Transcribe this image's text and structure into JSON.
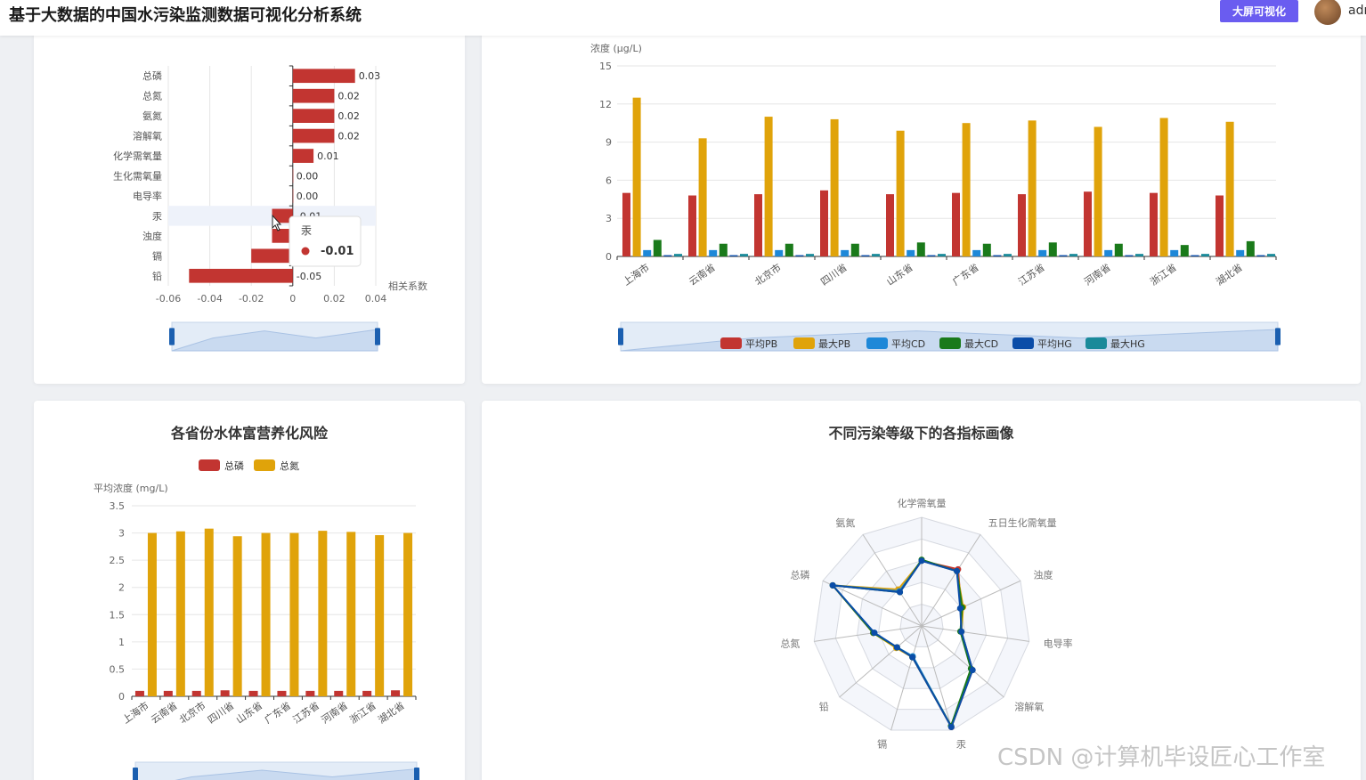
{
  "header": {
    "title": "基于大数据的中国水污染监测数据可视化分析系统",
    "big_screen_button": "大屏可视化",
    "username": "admin"
  },
  "correlation_chart": {
    "chart_data": {
      "type": "bar",
      "orientation": "horizontal",
      "categories": [
        "总磷",
        "总氮",
        "氨氮",
        "溶解氧",
        "化学需氧量",
        "生化需氧量",
        "电导率",
        "汞",
        "浊度",
        "镉",
        "铅"
      ],
      "values": [
        0.03,
        0.02,
        0.02,
        0.02,
        0.01,
        0.0,
        0.0,
        -0.01,
        -0.01,
        -0.02,
        -0.05
      ],
      "value_labels": [
        "0.03",
        "0.02",
        "0.02",
        "0.02",
        "0.01",
        "0.00",
        "0.00",
        "-0.01",
        "-0.01",
        "-0.02",
        "-0.05"
      ],
      "xlabel": "相关系数",
      "xlim": [
        -0.06,
        0.04
      ],
      "x_ticks": [
        "-0.06",
        "-0.04",
        "-0.02",
        "0",
        "0.02",
        "0.04"
      ],
      "color": "#c23531"
    },
    "tooltip": {
      "title": "汞",
      "value": "-0.01"
    }
  },
  "heavy_metal_chart": {
    "chart_data": {
      "type": "bar",
      "ylabel": "浓度 (μg/L)",
      "ylim": [
        0,
        15
      ],
      "y_ticks": [
        "0",
        "3",
        "6",
        "9",
        "12",
        "15"
      ],
      "categories": [
        "上海市",
        "云南省",
        "北京市",
        "四川省",
        "山东省",
        "广东省",
        "江苏省",
        "河南省",
        "浙江省",
        "湖北省"
      ],
      "series": [
        {
          "name": "平均PB",
          "color": "#c23531",
          "values": [
            5.0,
            4.8,
            4.9,
            5.2,
            4.9,
            5.0,
            4.9,
            5.1,
            5.0,
            4.8
          ]
        },
        {
          "name": "最大PB",
          "color": "#e0a30a",
          "values": [
            12.5,
            9.3,
            11.0,
            10.8,
            9.9,
            10.5,
            10.7,
            10.2,
            10.9,
            10.6
          ]
        },
        {
          "name": "平均CD",
          "color": "#1e88d8",
          "values": [
            0.5,
            0.5,
            0.5,
            0.5,
            0.5,
            0.5,
            0.5,
            0.5,
            0.5,
            0.5
          ]
        },
        {
          "name": "最大CD",
          "color": "#1a7a1a",
          "values": [
            1.3,
            1.0,
            1.0,
            1.0,
            1.1,
            1.0,
            1.1,
            1.0,
            0.9,
            1.2
          ]
        },
        {
          "name": "平均HG",
          "color": "#0b4da8",
          "values": [
            0.1,
            0.1,
            0.1,
            0.1,
            0.1,
            0.1,
            0.1,
            0.1,
            0.1,
            0.1
          ]
        },
        {
          "name": "最大HG",
          "color": "#1a8a9a",
          "values": [
            0.2,
            0.2,
            0.2,
            0.2,
            0.2,
            0.2,
            0.2,
            0.2,
            0.2,
            0.2
          ]
        }
      ]
    }
  },
  "eutrophication_chart": {
    "title": "各省份水体富营养化风险",
    "chart_data": {
      "type": "bar",
      "ylabel": "平均浓度 (mg/L)",
      "ylim": [
        0,
        3.5
      ],
      "y_ticks": [
        "0",
        "0.5",
        "1",
        "1.5",
        "2",
        "2.5",
        "3",
        "3.5"
      ],
      "categories": [
        "上海市",
        "云南省",
        "北京市",
        "四川省",
        "山东省",
        "广东省",
        "江苏省",
        "河南省",
        "浙江省",
        "湖北省"
      ],
      "series": [
        {
          "name": "总磷",
          "color": "#c23531",
          "values": [
            0.1,
            0.1,
            0.1,
            0.11,
            0.1,
            0.1,
            0.1,
            0.1,
            0.1,
            0.11
          ]
        },
        {
          "name": "总氮",
          "color": "#e0a30a",
          "values": [
            3.0,
            3.03,
            3.08,
            2.94,
            3.0,
            3.0,
            3.04,
            3.02,
            2.96,
            3.0
          ]
        }
      ]
    }
  },
  "radar_chart": {
    "title": "不同污染等级下的各指标画像",
    "chart_data": {
      "type": "radar",
      "indicators": [
        "化学需氧量",
        "五日生化需氧量",
        "浊度",
        "电导率",
        "溶解氧",
        "汞",
        "镉",
        "铅",
        "总氮",
        "总磷",
        "氨氮"
      ],
      "series": [
        {
          "color": "#c23531",
          "values": [
            0.6,
            0.62,
            0.4,
            0.37,
            0.62,
            0.97,
            0.3,
            0.3,
            0.45,
            0.9,
            0.38
          ]
        },
        {
          "color": "#e0a30a",
          "values": [
            0.6,
            0.6,
            0.42,
            0.37,
            0.61,
            0.96,
            0.3,
            0.31,
            0.45,
            0.9,
            0.4
          ]
        },
        {
          "color": "#1e88d8",
          "values": [
            0.6,
            0.6,
            0.4,
            0.37,
            0.62,
            0.96,
            0.29,
            0.3,
            0.44,
            0.9,
            0.38
          ]
        },
        {
          "color": "#1a7a1a",
          "values": [
            0.61,
            0.6,
            0.41,
            0.36,
            0.6,
            0.96,
            0.3,
            0.3,
            0.45,
            0.9,
            0.37
          ]
        },
        {
          "color": "#0b4da8",
          "values": [
            0.6,
            0.6,
            0.39,
            0.37,
            0.62,
            0.97,
            0.3,
            0.3,
            0.44,
            0.9,
            0.37
          ]
        }
      ]
    }
  },
  "watermark": "CSDN @计算机毕设匠心工作室"
}
